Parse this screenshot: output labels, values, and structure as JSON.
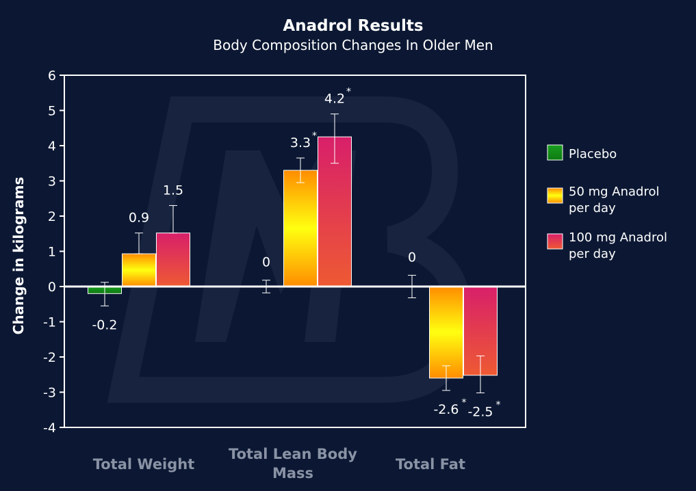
{
  "chart_data": {
    "type": "bar",
    "title": "Anadrol Results",
    "subtitle": "Body Composition Changes In Older Men",
    "xlabel": "",
    "ylabel": "Change in kilograms",
    "ylim": [
      -4,
      6
    ],
    "yticks": [
      6,
      5,
      4,
      3,
      2,
      1,
      0,
      -1,
      -2,
      -3,
      -4
    ],
    "categories": [
      {
        "lines": [
          "Total Weight"
        ]
      },
      {
        "lines": [
          "Total Lean Body",
          "Mass"
        ]
      },
      {
        "lines": [
          "Total Fat"
        ]
      }
    ],
    "series": [
      {
        "name": "Placebo",
        "legend_lines": [
          "Placebo"
        ],
        "color_top": "#1a9e1f",
        "color_bottom": "#0d7a12",
        "values": [
          -0.2,
          0,
          0
        ],
        "error_low": [
          -0.55,
          -0.18,
          -0.32
        ],
        "error_high": [
          0.12,
          0.18,
          0.32
        ],
        "labels": [
          "-0.2",
          "0",
          "0"
        ],
        "significant": [
          false,
          false,
          false
        ]
      },
      {
        "name": "50 mg Anadrol per day",
        "legend_lines": [
          "50 mg Anadrol",
          "per day"
        ],
        "color_top": "#ff8c00",
        "color_mid": "#ffff10",
        "color_bottom": "#ff8c00",
        "values": [
          0.93,
          3.3,
          -2.6
        ],
        "error_low": [
          0.93,
          2.95,
          -2.95
        ],
        "error_high": [
          1.52,
          3.65,
          -2.25
        ],
        "labels": [
          "0.9",
          "3.3",
          "-2.6"
        ],
        "significant": [
          false,
          true,
          true
        ]
      },
      {
        "name": "100 mg Anadrol per day",
        "legend_lines": [
          "100 mg Anadrol",
          "per day"
        ],
        "color_top": "#d81f6a",
        "color_bottom": "#ee5a33",
        "values": [
          1.52,
          4.25,
          -2.52
        ],
        "error_low": [
          1.52,
          3.5,
          -3.02
        ],
        "error_high": [
          2.3,
          4.9,
          -1.97
        ],
        "labels": [
          "1.5",
          "4.2",
          "-2.5"
        ],
        "significant": [
          false,
          true,
          true
        ]
      }
    ],
    "legend_position": "right",
    "grid": false,
    "significance_marker": "*",
    "watermark": "MB"
  }
}
